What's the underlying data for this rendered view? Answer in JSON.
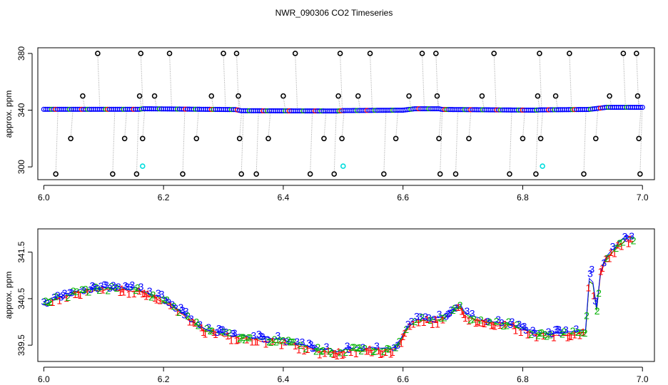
{
  "chart_data": {
    "title": "NWR_090306  CO2 Timeseries",
    "panels": [
      {
        "id": "top",
        "type": "scatter",
        "xlabel": "",
        "ylabel": "approx. ppm",
        "xlim": [
          5.99,
          7.02
        ],
        "ylim": [
          291,
          384
        ],
        "xticks": [
          {
            "value": 6.0,
            "label": "6.0"
          },
          {
            "value": 6.2,
            "label": "6.2"
          },
          {
            "value": 6.4,
            "label": "6.4"
          },
          {
            "value": 6.6,
            "label": "6.6"
          },
          {
            "value": 6.8,
            "label": "6.8"
          },
          {
            "value": 7.0,
            "label": "7.0"
          }
        ],
        "yticks": [
          {
            "value": 300,
            "label": "300"
          },
          {
            "value": 340,
            "label": "340"
          },
          {
            "value": 380,
            "label": "380"
          }
        ],
        "baseline": [
          [
            6.0,
            340.6
          ],
          [
            6.16,
            340.6
          ],
          [
            6.165,
            341.0
          ],
          [
            6.32,
            340.4
          ],
          [
            6.33,
            339.6
          ],
          [
            6.49,
            339.4
          ],
          [
            6.5,
            339.7
          ],
          [
            6.6,
            340.0
          ],
          [
            6.62,
            341.0
          ],
          [
            6.66,
            341.0
          ],
          [
            6.665,
            340.5
          ],
          [
            6.82,
            340.0
          ],
          [
            6.83,
            340.2
          ],
          [
            6.91,
            340.5
          ],
          [
            6.92,
            341.0
          ],
          [
            6.94,
            342.0
          ],
          [
            7.0,
            342.0
          ]
        ],
        "outliers": [
          {
            "x": 6.02,
            "y": 295
          },
          {
            "x": 6.045,
            "y": 320
          },
          {
            "x": 6.065,
            "y": 350
          },
          {
            "x": 6.09,
            "y": 380
          },
          {
            "x": 6.115,
            "y": 295
          },
          {
            "x": 6.135,
            "y": 320
          },
          {
            "x": 6.155,
            "y": 295
          },
          {
            "x": 6.16,
            "y": 350
          },
          {
            "x": 6.162,
            "y": 380
          },
          {
            "x": 6.165,
            "y": 320
          },
          {
            "x": 6.185,
            "y": 350
          },
          {
            "x": 6.21,
            "y": 380
          },
          {
            "x": 6.232,
            "y": 295
          },
          {
            "x": 6.255,
            "y": 320
          },
          {
            "x": 6.28,
            "y": 350
          },
          {
            "x": 6.3,
            "y": 380
          },
          {
            "x": 6.322,
            "y": 380
          },
          {
            "x": 6.325,
            "y": 350
          },
          {
            "x": 6.327,
            "y": 320
          },
          {
            "x": 6.33,
            "y": 295
          },
          {
            "x": 6.355,
            "y": 295
          },
          {
            "x": 6.375,
            "y": 320
          },
          {
            "x": 6.4,
            "y": 350
          },
          {
            "x": 6.42,
            "y": 380
          },
          {
            "x": 6.445,
            "y": 295
          },
          {
            "x": 6.468,
            "y": 320
          },
          {
            "x": 6.485,
            "y": 295
          },
          {
            "x": 6.492,
            "y": 350
          },
          {
            "x": 6.495,
            "y": 380
          },
          {
            "x": 6.498,
            "y": 320
          },
          {
            "x": 6.525,
            "y": 350
          },
          {
            "x": 6.545,
            "y": 380
          },
          {
            "x": 6.568,
            "y": 295
          },
          {
            "x": 6.588,
            "y": 320
          },
          {
            "x": 6.61,
            "y": 350
          },
          {
            "x": 6.632,
            "y": 380
          },
          {
            "x": 6.655,
            "y": 380
          },
          {
            "x": 6.657,
            "y": 350
          },
          {
            "x": 6.66,
            "y": 320
          },
          {
            "x": 6.662,
            "y": 295
          },
          {
            "x": 6.688,
            "y": 295
          },
          {
            "x": 6.71,
            "y": 320
          },
          {
            "x": 6.732,
            "y": 350
          },
          {
            "x": 6.752,
            "y": 380
          },
          {
            "x": 6.778,
            "y": 295
          },
          {
            "x": 6.8,
            "y": 320
          },
          {
            "x": 6.822,
            "y": 295
          },
          {
            "x": 6.825,
            "y": 350
          },
          {
            "x": 6.828,
            "y": 380
          },
          {
            "x": 6.83,
            "y": 320
          },
          {
            "x": 6.855,
            "y": 350
          },
          {
            "x": 6.878,
            "y": 380
          },
          {
            "x": 6.902,
            "y": 295
          },
          {
            "x": 6.922,
            "y": 320
          },
          {
            "x": 6.945,
            "y": 350
          },
          {
            "x": 6.968,
            "y": 380
          },
          {
            "x": 6.99,
            "y": 380
          },
          {
            "x": 6.992,
            "y": 350
          },
          {
            "x": 6.994,
            "y": 320
          },
          {
            "x": 6.996,
            "y": 295
          }
        ],
        "highlight_points": [
          {
            "x": 6.165,
            "y": 300.5
          },
          {
            "x": 6.5,
            "y": 300.5
          },
          {
            "x": 6.833,
            "y": 300.5
          }
        ],
        "colors": {
          "outlier": "#000000",
          "baseline": "#0000ff",
          "connector": "#a0a0a0",
          "highlight": "#00dddd",
          "accent_red": "#ff0000",
          "accent_green": "#00b000"
        }
      },
      {
        "id": "bottom",
        "type": "line",
        "xlabel": "",
        "ylabel": "approx. ppm",
        "xlim": [
          5.99,
          7.02
        ],
        "ylim": [
          339.15,
          342.0
        ],
        "xticks": [
          {
            "value": 6.0,
            "label": "6.0"
          },
          {
            "value": 6.2,
            "label": "6.2"
          },
          {
            "value": 6.4,
            "label": "6.4"
          },
          {
            "value": 6.6,
            "label": "6.6"
          },
          {
            "value": 6.8,
            "label": "6.8"
          },
          {
            "value": 7.0,
            "label": "7.0"
          }
        ],
        "yticks": [
          {
            "value": 339.5,
            "label": "339.5"
          },
          {
            "value": 340.5,
            "label": "340.5"
          },
          {
            "value": 341.5,
            "label": "341.5"
          }
        ],
        "series": [
          {
            "name": "1",
            "color": "#ff0000"
          },
          {
            "name": "2",
            "color": "#00b000"
          },
          {
            "name": "3",
            "color": "#0000ff"
          }
        ],
        "trend": [
          [
            6.0,
            340.38
          ],
          [
            6.02,
            340.5
          ],
          [
            6.05,
            340.62
          ],
          [
            6.08,
            340.7
          ],
          [
            6.12,
            340.72
          ],
          [
            6.15,
            340.7
          ],
          [
            6.17,
            340.62
          ],
          [
            6.2,
            340.48
          ],
          [
            6.22,
            340.3
          ],
          [
            6.24,
            340.1
          ],
          [
            6.26,
            339.9
          ],
          [
            6.28,
            339.78
          ],
          [
            6.31,
            339.72
          ],
          [
            6.35,
            339.65
          ],
          [
            6.4,
            339.6
          ],
          [
            6.43,
            339.5
          ],
          [
            6.46,
            339.4
          ],
          [
            6.49,
            339.35
          ],
          [
            6.51,
            339.4
          ],
          [
            6.55,
            339.42
          ],
          [
            6.58,
            339.4
          ],
          [
            6.595,
            339.55
          ],
          [
            6.605,
            339.82
          ],
          [
            6.615,
            339.98
          ],
          [
            6.63,
            340.05
          ],
          [
            6.655,
            340.05
          ],
          [
            6.67,
            340.1
          ],
          [
            6.685,
            340.25
          ],
          [
            6.695,
            340.38
          ],
          [
            6.7,
            340.2
          ],
          [
            6.72,
            340.05
          ],
          [
            6.75,
            339.98
          ],
          [
            6.78,
            339.95
          ],
          [
            6.81,
            339.8
          ],
          [
            6.84,
            339.72
          ],
          [
            6.87,
            339.75
          ],
          [
            6.905,
            339.78
          ],
          [
            6.91,
            340.8
          ],
          [
            6.915,
            341.2
          ],
          [
            6.92,
            340.4
          ],
          [
            6.925,
            340.2
          ],
          [
            6.93,
            341.1
          ],
          [
            6.94,
            341.4
          ],
          [
            6.955,
            341.6
          ],
          [
            6.97,
            341.8
          ],
          [
            6.985,
            341.78
          ]
        ]
      }
    ]
  }
}
